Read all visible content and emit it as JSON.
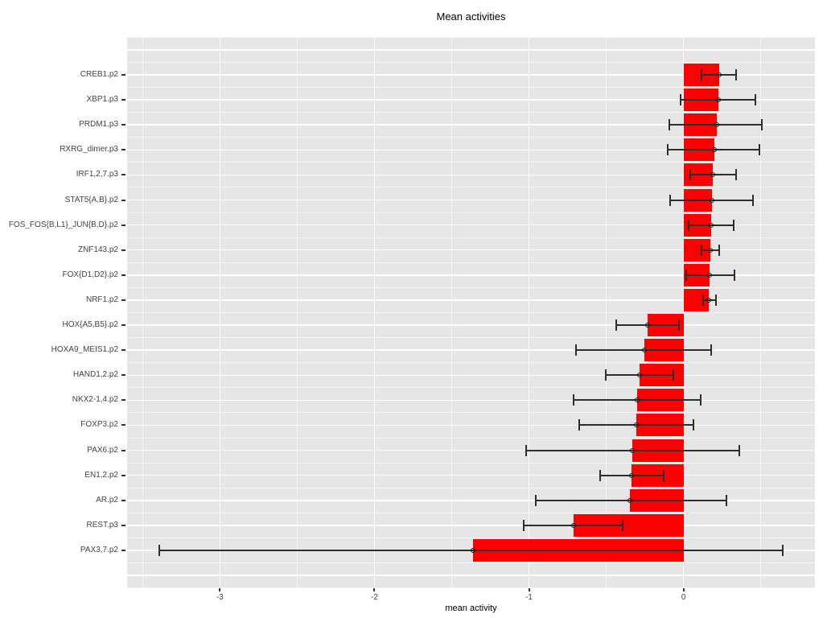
{
  "chart_data": {
    "type": "bar",
    "orientation": "horizontal",
    "title": "Mean activities",
    "xlabel": "mean activity",
    "ylabel": "",
    "xlim": [
      -3.6,
      0.85
    ],
    "x_major_ticks": [
      -3,
      -2,
      -1,
      0
    ],
    "x_tick_labels": [
      "-3",
      "-2",
      "-1",
      "0"
    ],
    "x_minor_ticks": [
      -3.5,
      -2.5,
      -1.5,
      -0.5,
      0.5
    ],
    "grid": true,
    "legend": false,
    "categories": [
      "CREB1.p2",
      "XBP1.p3",
      "PRDM1.p3",
      "RXRG_dimer.p3",
      "IRF1,2,7.p3",
      "STAT5{A,B}.p2",
      "FOS_FOS{B,L1}_JUN{B,D}.p2",
      "ZNF143.p2",
      "FOX{D1,D2}.p2",
      "NRF1.p2",
      "HOX{A5,B5}.p2",
      "HOXA9_MEIS1.p2",
      "HAND1,2.p2",
      "NKX2-1,4.p2",
      "FOXP3.p2",
      "PAX6.p2",
      "EN1,2.p2",
      "AR.p2",
      "REST.p3",
      "PAX3,7.p2"
    ],
    "series": [
      {
        "name": "mean activity",
        "values": [
          0.23,
          0.225,
          0.215,
          0.2,
          0.19,
          0.182,
          0.178,
          0.174,
          0.17,
          0.165,
          -0.233,
          -0.254,
          -0.285,
          -0.3,
          -0.306,
          -0.332,
          -0.337,
          -0.345,
          -0.71,
          -1.36
        ],
        "error_low": [
          0.115,
          -0.02,
          -0.09,
          -0.1,
          0.043,
          -0.086,
          0.032,
          0.115,
          0.015,
          0.126,
          -0.437,
          -0.694,
          -0.504,
          -0.713,
          -0.674,
          -1.017,
          -0.542,
          -0.958,
          -1.033,
          -3.39
        ],
        "error_high": [
          0.34,
          0.463,
          0.509,
          0.489,
          0.34,
          0.449,
          0.323,
          0.233,
          0.328,
          0.21,
          -0.031,
          0.181,
          -0.067,
          0.112,
          0.066,
          0.363,
          -0.126,
          0.276,
          -0.392,
          0.644
        ]
      }
    ],
    "colors": {
      "bar_fill": "#FF0000",
      "panel_background": "#E6E6E6",
      "grid_major": "#FFFFFF",
      "grid_minor": "#FFFFFF",
      "error_bar": "#2e2e2e",
      "axis_text": "#444444",
      "title_text": "#000000"
    }
  }
}
